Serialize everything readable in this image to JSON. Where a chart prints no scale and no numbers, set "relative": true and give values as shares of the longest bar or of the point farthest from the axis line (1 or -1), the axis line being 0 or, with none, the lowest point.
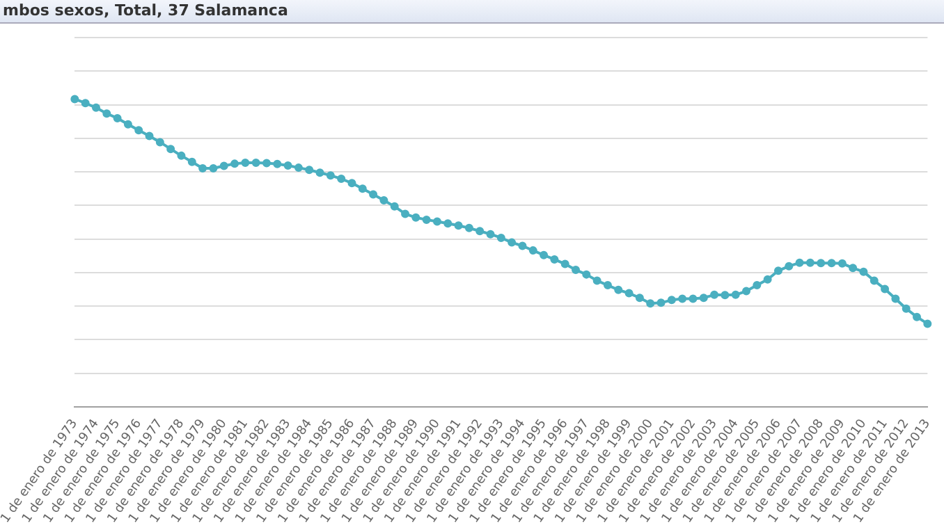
{
  "chart_data": {
    "type": "line",
    "title": "mbos sexos, Total, 37 Salamanca",
    "relative": true,
    "grid": "y",
    "legend": false,
    "marker": "circle",
    "line_style": "solid",
    "categories": [
      "1 de enero de 1973",
      null,
      "1 de enero de 1974",
      null,
      "1 de enero de 1975",
      null,
      "1 de enero de 1976",
      null,
      "1 de enero de 1977",
      null,
      "1 de enero de 1978",
      null,
      "1 de enero de 1979",
      null,
      "1 de enero de 1980",
      null,
      "1 de enero de 1981",
      null,
      "1 de enero de 1982",
      null,
      "1 de enero de 1983",
      null,
      "1 de enero de 1984",
      null,
      "1 de enero de 1985",
      null,
      "1 de enero de 1986",
      null,
      "1 de enero de 1987",
      null,
      "1 de enero de 1988",
      null,
      "1 de enero de 1989",
      null,
      "1 de enero de 1990",
      null,
      "1 de enero de 1991",
      null,
      "1 de enero de 1992",
      null,
      "1 de enero de 1993",
      null,
      "1 de enero de 1994",
      null,
      "1 de enero de 1995",
      null,
      "1 de enero de 1996",
      null,
      "1 de enero de 1997",
      null,
      "1 de enero de 1998",
      null,
      "1 de enero de 1999",
      null,
      "1 de enero de 2000",
      null,
      "1 de enero de 2001",
      null,
      "1 de enero de 2002",
      null,
      "1 de enero de 2003",
      null,
      "1 de enero de 2004",
      null,
      "1 de enero de 2005",
      null,
      "1 de enero de 2006",
      null,
      "1 de enero de 2007",
      null,
      "1 de enero de 2008",
      null,
      "1 de enero de 2009",
      null,
      "1 de enero de 2010",
      null,
      "1 de enero de 2011",
      null,
      "1 de enero de 2012",
      null,
      "1 de enero de 2013"
    ],
    "series": [
      {
        "color": "#4aafc0",
        "values": [
          1.0,
          0.987,
          0.972,
          0.953,
          0.938,
          0.918,
          0.899,
          0.88,
          0.86,
          0.838,
          0.816,
          0.796,
          0.775,
          0.775,
          0.783,
          0.79,
          0.793,
          0.793,
          0.792,
          0.789,
          0.784,
          0.777,
          0.77,
          0.761,
          0.752,
          0.741,
          0.727,
          0.709,
          0.69,
          0.671,
          0.651,
          0.627,
          0.615,
          0.608,
          0.602,
          0.596,
          0.589,
          0.581,
          0.571,
          0.561,
          0.549,
          0.534,
          0.523,
          0.508,
          0.493,
          0.479,
          0.464,
          0.445,
          0.43,
          0.41,
          0.395,
          0.38,
          0.369,
          0.354,
          0.336,
          0.338,
          0.347,
          0.351,
          0.351,
          0.354,
          0.364,
          0.363,
          0.364,
          0.376,
          0.395,
          0.414,
          0.442,
          0.457,
          0.468,
          0.468,
          0.467,
          0.467,
          0.466,
          0.451,
          0.439,
          0.41,
          0.383,
          0.351,
          0.319,
          0.292,
          0.27
        ]
      }
    ]
  }
}
